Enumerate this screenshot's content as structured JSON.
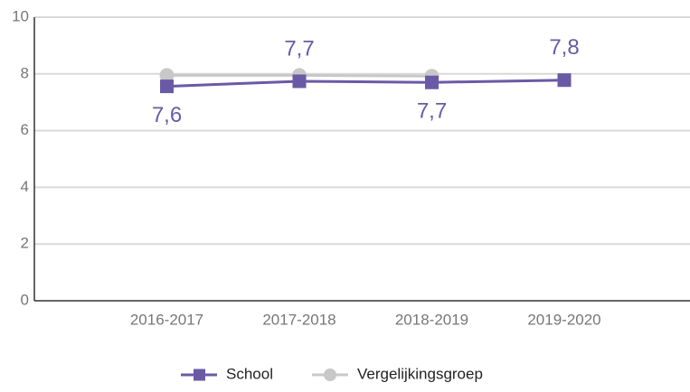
{
  "chart_data": {
    "type": "line",
    "categories": [
      "2016-2017",
      "2017-2018",
      "2018-2019",
      "2019-2020"
    ],
    "series": [
      {
        "name": "School",
        "color": "#6a5aa6",
        "values": [
          7.56,
          7.74,
          7.7,
          7.78
        ],
        "value_labels": [
          "7,6",
          "7,7",
          "7,7",
          "7,8"
        ]
      },
      {
        "name": "Vergelijkingsgroep",
        "color": "#c8c8c8",
        "values": [
          7.95,
          7.95,
          7.92,
          null
        ]
      }
    ],
    "ylim": [
      0,
      10
    ],
    "yticks": [
      0,
      2,
      4,
      6,
      8,
      10
    ],
    "grid": true,
    "legend": "bottom"
  }
}
